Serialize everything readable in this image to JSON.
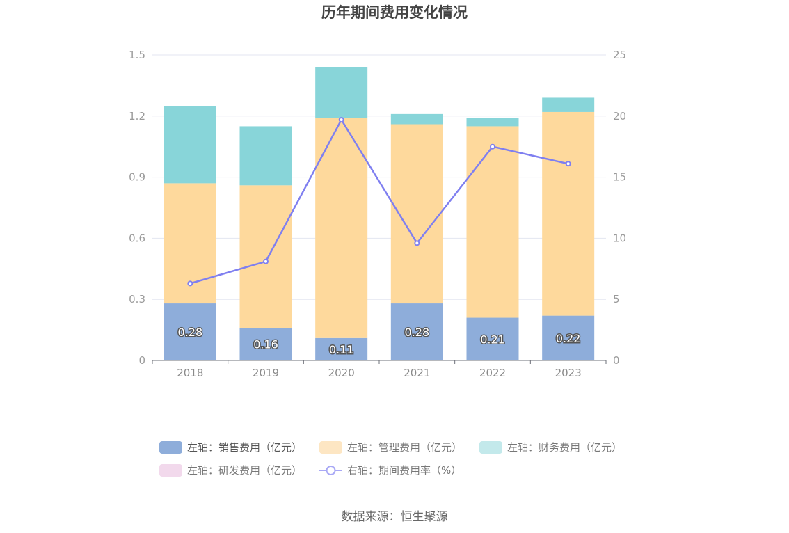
{
  "chart_data": {
    "type": "bar",
    "title": "历年期间费用变化情况",
    "categories": [
      "2018",
      "2019",
      "2020",
      "2021",
      "2022",
      "2023"
    ],
    "y_left": {
      "ylim": [
        0,
        1.5
      ],
      "ticks": [
        "0",
        "0.3",
        "0.6",
        "0.9",
        "1.2",
        "1.5"
      ]
    },
    "y_right": {
      "ylim": [
        0,
        25
      ],
      "ticks": [
        "0",
        "5",
        "10",
        "15",
        "20",
        "25"
      ]
    },
    "series": [
      {
        "name": "左轴：销售费用（亿元）",
        "type": "bar",
        "axis": "left",
        "color": "#8eadda",
        "values": [
          0.28,
          0.16,
          0.11,
          0.28,
          0.21,
          0.22
        ],
        "labels": [
          "0.28",
          "0.16",
          "0.11",
          "0.28",
          "0.21",
          "0.22"
        ]
      },
      {
        "name": "左轴：管理费用（亿元）",
        "type": "bar",
        "axis": "left",
        "color": "#fed99c",
        "values": [
          0.59,
          0.7,
          1.08,
          0.88,
          0.94,
          1.0
        ]
      },
      {
        "name": "左轴：财务费用（亿元）",
        "type": "bar",
        "axis": "left",
        "color": "#88d5d9",
        "values": [
          0.38,
          0.29,
          0.25,
          0.05,
          0.04,
          0.07
        ]
      },
      {
        "name": "左轴：研发费用（亿元）",
        "type": "bar",
        "axis": "left",
        "color": "#f2d9ec",
        "values": [
          0,
          0,
          0,
          0,
          0,
          0
        ]
      },
      {
        "name": "右轴：期间费用率（%）",
        "type": "line",
        "axis": "right",
        "color": "#7f7ff0",
        "values": [
          6.3,
          8.1,
          19.7,
          9.6,
          17.5,
          16.1
        ]
      }
    ],
    "grid": true,
    "legend_position": "bottom"
  },
  "source": "数据来源：恒生聚源"
}
